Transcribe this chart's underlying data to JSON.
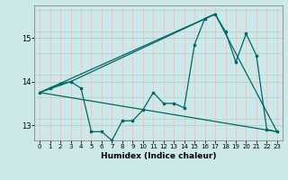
{
  "title": "",
  "xlabel": "Humidex (Indice chaleur)",
  "background_color": "#cce8e8",
  "grid_color_major": "#aacccc",
  "grid_color_red": "#ffaaaa",
  "line_color": "#006666",
  "xlim": [
    -0.5,
    23.5
  ],
  "ylim": [
    12.65,
    15.75
  ],
  "yticks": [
    13,
    14,
    15
  ],
  "xticks": [
    0,
    1,
    2,
    3,
    4,
    5,
    6,
    7,
    8,
    9,
    10,
    11,
    12,
    13,
    14,
    15,
    16,
    17,
    18,
    19,
    20,
    21,
    22,
    23
  ],
  "main_y": [
    13.75,
    13.85,
    13.95,
    14.0,
    13.85,
    12.85,
    12.85,
    12.65,
    13.1,
    13.1,
    13.35,
    13.75,
    13.5,
    13.5,
    13.4,
    14.85,
    15.45,
    15.55,
    15.15,
    14.45,
    15.1,
    14.6,
    12.9,
    12.85
  ],
  "envelope": {
    "start_x": 0,
    "start_y": 13.75,
    "peak_x": 17,
    "peak_y": 15.55,
    "end_x": 23,
    "end_y": 12.85,
    "mid_x": 3,
    "mid_y": 14.0
  }
}
